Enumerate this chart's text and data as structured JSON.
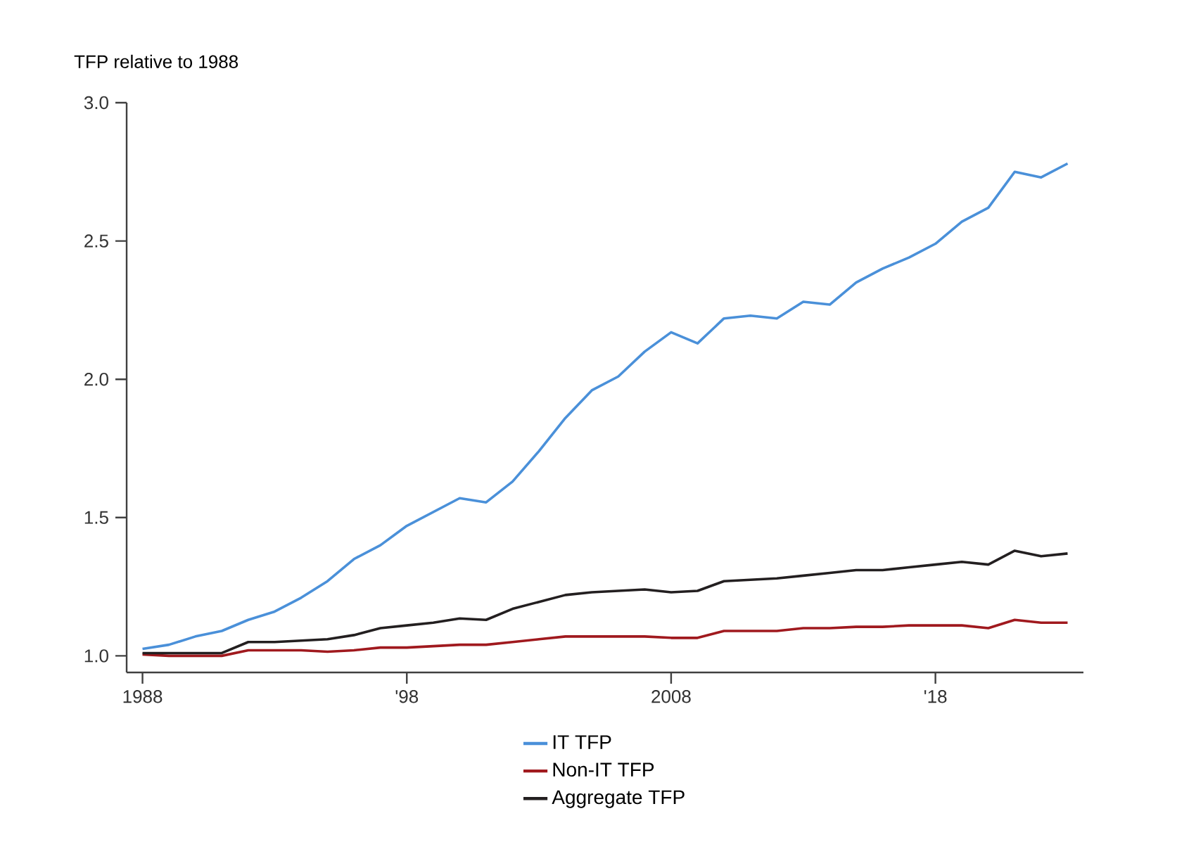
{
  "chart_data": {
    "type": "line",
    "ylabel": "TFP relative to 1988",
    "x": [
      1988,
      1989,
      1990,
      1991,
      1992,
      1993,
      1994,
      1995,
      1996,
      1997,
      1998,
      1999,
      2000,
      2001,
      2002,
      2003,
      2004,
      2005,
      2006,
      2007,
      2008,
      2009,
      2010,
      2011,
      2012,
      2013,
      2014,
      2015,
      2016,
      2017,
      2018,
      2019,
      2020,
      2021,
      2022,
      2023
    ],
    "series": [
      {
        "name": "IT TFP",
        "color": "#4a90d9",
        "values": [
          1.025,
          1.04,
          1.07,
          1.09,
          1.13,
          1.16,
          1.21,
          1.27,
          1.35,
          1.4,
          1.47,
          1.52,
          1.57,
          1.555,
          1.63,
          1.74,
          1.86,
          1.96,
          2.01,
          2.1,
          2.17,
          2.13,
          2.22,
          2.23,
          2.22,
          2.28,
          2.27,
          2.35,
          2.4,
          2.44,
          2.49,
          2.57,
          2.62,
          2.75,
          2.73,
          2.78
        ]
      },
      {
        "name": "Non-IT TFP",
        "color": "#a0191e",
        "values": [
          1.005,
          1.0,
          1.0,
          1.0,
          1.02,
          1.02,
          1.02,
          1.015,
          1.02,
          1.03,
          1.03,
          1.035,
          1.04,
          1.04,
          1.05,
          1.06,
          1.07,
          1.07,
          1.07,
          1.07,
          1.065,
          1.065,
          1.09,
          1.09,
          1.09,
          1.1,
          1.1,
          1.105,
          1.105,
          1.11,
          1.11,
          1.11,
          1.1,
          1.13,
          1.12,
          1.12
        ]
      },
      {
        "name": "Aggregate TFP",
        "color": "#231f20",
        "values": [
          1.01,
          1.01,
          1.01,
          1.01,
          1.05,
          1.05,
          1.055,
          1.06,
          1.075,
          1.1,
          1.11,
          1.12,
          1.135,
          1.13,
          1.17,
          1.195,
          1.22,
          1.23,
          1.235,
          1.24,
          1.23,
          1.235,
          1.27,
          1.275,
          1.28,
          1.29,
          1.3,
          1.31,
          1.31,
          1.32,
          1.33,
          1.34,
          1.33,
          1.38,
          1.36,
          1.37
        ]
      }
    ],
    "xlim": [
      1987.4,
      2023.6
    ],
    "xticks": [
      1988,
      {
        "value": 1998,
        "label": "'98"
      },
      2008,
      {
        "value": 2018,
        "label": "'18"
      }
    ],
    "ylim": [
      0.94,
      3.0
    ],
    "yticks": [
      {
        "value": 1.0,
        "label": "1.0"
      },
      {
        "value": 1.5,
        "label": "1.5"
      },
      {
        "value": 2.0,
        "label": "2.0"
      },
      {
        "value": 2.5,
        "label": "2.5"
      },
      {
        "value": 3.0,
        "label": "3.0"
      }
    ],
    "grid": false,
    "legend": "bottom",
    "line_style": "solid",
    "marker": "none"
  }
}
